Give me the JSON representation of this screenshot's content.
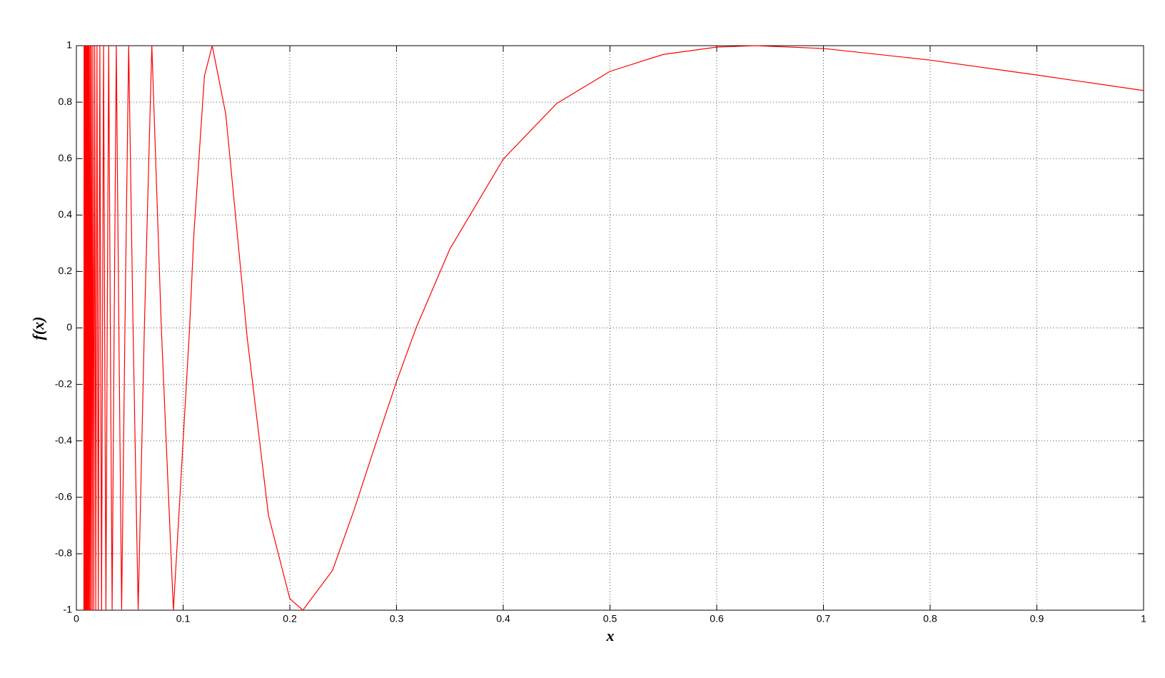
{
  "chart_data": {
    "type": "line",
    "x_label": "x",
    "y_label": "f(x)",
    "xlim": [
      0,
      1
    ],
    "ylim": [
      -1,
      1
    ],
    "xticks": [
      0,
      0.1,
      0.2,
      0.3,
      0.4,
      0.5,
      0.6,
      0.7,
      0.8,
      0.9,
      1
    ],
    "yticks": [
      -1,
      -0.8,
      -0.6,
      -0.4,
      -0.2,
      0,
      0.2,
      0.4,
      0.6,
      0.8,
      1
    ],
    "grid": true,
    "series": [
      {
        "color": "#ff0000",
        "x": [
          0.007,
          0.0072,
          0.0073,
          0.0075,
          0.0077,
          0.0079,
          0.0081,
          0.0083,
          0.0085,
          0.0087,
          0.009,
          0.0092,
          0.0095,
          0.0098,
          0.0101,
          0.0104,
          0.0108,
          0.0112,
          0.0116,
          0.012,
          0.0125,
          0.013,
          0.0135,
          0.0141,
          0.0148,
          0.0155,
          0.0163,
          0.0172,
          0.0182,
          0.0193,
          0.0199,
          0.0205,
          0.0212,
          0.022,
          0.0227,
          0.0236,
          0.0245,
          0.0255,
          0.0265,
          0.0277,
          0.0289,
          0.0303,
          0.0318,
          0.0335,
          0.0354,
          0.0374,
          0.0398,
          0.0424,
          0.0455,
          0.049,
          0.0531,
          0.0579,
          0.0637,
          0.0707,
          0.0796,
          0.0909,
          0.1061,
          0.11,
          0.12,
          0.1273,
          0.14,
          0.1592,
          0.16,
          0.18,
          0.2,
          0.2122,
          0.24,
          0.26,
          0.28,
          0.3,
          0.3183,
          0.35,
          0.4,
          0.45,
          0.5,
          0.55,
          0.6,
          0.6366,
          0.7,
          0.8,
          0.9,
          1
        ],
        "values": [
          -1,
          1,
          -1,
          1,
          -1,
          1,
          -1,
          1,
          -1,
          1,
          -1,
          1,
          -1,
          1,
          -1,
          1,
          -1,
          1,
          -1,
          1,
          -1,
          1,
          -1,
          1,
          -1,
          1,
          -1,
          1,
          -1,
          1,
          0,
          -1,
          0,
          1,
          0,
          -1,
          0,
          1,
          0,
          -1,
          0,
          1,
          0,
          -1,
          0,
          1,
          0,
          -1,
          0,
          1,
          0,
          -1,
          0,
          1,
          0,
          -1,
          0,
          0.326,
          0.893,
          1,
          0.757,
          0,
          -0.033,
          -0.664,
          -0.959,
          -1,
          -0.859,
          -0.647,
          -0.416,
          -0.19,
          0,
          0.28,
          0.598,
          0.795,
          0.909,
          0.969,
          0.995,
          1,
          0.99,
          0.949,
          0.896,
          0.841
        ]
      }
    ]
  }
}
